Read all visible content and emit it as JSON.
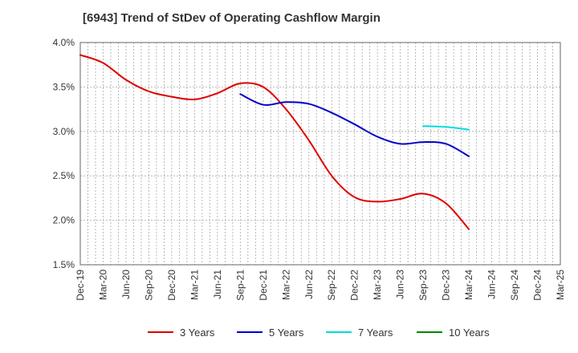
{
  "chart_data": {
    "type": "line",
    "title": "[6943]  Trend of StDev of Operating Cashflow Margin",
    "xlabel": "",
    "ylabel": "",
    "x_ticks": [
      "Dec-19",
      "Mar-20",
      "Jun-20",
      "Sep-20",
      "Dec-20",
      "Mar-21",
      "Jun-21",
      "Sep-21",
      "Dec-21",
      "Mar-22",
      "Jun-22",
      "Sep-22",
      "Dec-22",
      "Mar-23",
      "Jun-23",
      "Sep-23",
      "Dec-23",
      "Mar-24",
      "Jun-24",
      "Sep-24",
      "Dec-24",
      "Mar-25"
    ],
    "y_ticks": [
      "1.5%",
      "2.0%",
      "2.5%",
      "3.0%",
      "3.5%",
      "4.0%"
    ],
    "ylim": [
      1.5,
      4.0
    ],
    "y_unit": "%",
    "grid": true,
    "legend_position": "bottom",
    "series": [
      {
        "name": "3 Years",
        "color": "#dd0000",
        "x": [
          "Dec-19",
          "Mar-20",
          "Jun-20",
          "Sep-20",
          "Dec-20",
          "Mar-21",
          "Jun-21",
          "Sep-21",
          "Dec-21",
          "Mar-22",
          "Jun-22",
          "Sep-22",
          "Dec-22",
          "Mar-23",
          "Jun-23",
          "Sep-23",
          "Dec-23",
          "Mar-24"
        ],
        "values": [
          3.86,
          3.77,
          3.58,
          3.45,
          3.39,
          3.36,
          3.43,
          3.54,
          3.5,
          3.25,
          2.9,
          2.5,
          2.26,
          2.21,
          2.24,
          2.3,
          2.19,
          1.9
        ]
      },
      {
        "name": "5 Years",
        "color": "#0000cc",
        "x": [
          "Sep-21",
          "Dec-21",
          "Mar-22",
          "Jun-22",
          "Sep-22",
          "Dec-22",
          "Mar-23",
          "Jun-23",
          "Sep-23",
          "Dec-23",
          "Mar-24"
        ],
        "values": [
          3.42,
          3.3,
          3.33,
          3.31,
          3.21,
          3.08,
          2.94,
          2.86,
          2.88,
          2.86,
          2.72
        ]
      },
      {
        "name": "7 Years",
        "color": "#00dddd",
        "x": [
          "Sep-23",
          "Dec-23",
          "Mar-24"
        ],
        "values": [
          3.06,
          3.05,
          3.02
        ]
      },
      {
        "name": "10 Years",
        "color": "#008800",
        "x": [],
        "values": []
      }
    ]
  }
}
